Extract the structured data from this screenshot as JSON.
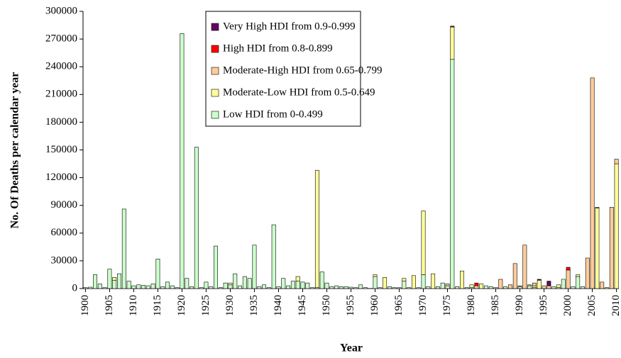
{
  "chart_data": {
    "type": "stacked-bar",
    "y_label": "No. Of Deaths per calendar year",
    "x_label": "Year",
    "x": [
      1900,
      1901,
      1902,
      1903,
      1904,
      1905,
      1906,
      1907,
      1908,
      1909,
      1910,
      1911,
      1912,
      1913,
      1914,
      1915,
      1916,
      1917,
      1918,
      1919,
      1920,
      1921,
      1922,
      1923,
      1924,
      1925,
      1926,
      1927,
      1928,
      1929,
      1930,
      1931,
      1932,
      1933,
      1934,
      1935,
      1936,
      1937,
      1938,
      1939,
      1940,
      1941,
      1942,
      1943,
      1944,
      1945,
      1946,
      1947,
      1948,
      1949,
      1950,
      1951,
      1952,
      1953,
      1954,
      1955,
      1956,
      1957,
      1958,
      1959,
      1960,
      1961,
      1962,
      1963,
      1964,
      1965,
      1966,
      1967,
      1968,
      1969,
      1970,
      1971,
      1972,
      1973,
      1974,
      1975,
      1976,
      1977,
      1978,
      1979,
      1980,
      1981,
      1982,
      1983,
      1984,
      1985,
      1986,
      1987,
      1988,
      1989,
      1990,
      1991,
      1992,
      1993,
      1994,
      1995,
      1996,
      1997,
      1998,
      1999,
      2000,
      2001,
      2002,
      2003,
      2004,
      2005,
      2006,
      2007,
      2008,
      2009,
      2010
    ],
    "xlim": [
      1899.5,
      2010.5
    ],
    "xticks": [
      1900,
      1905,
      1910,
      1915,
      1920,
      1925,
      1930,
      1935,
      1940,
      1945,
      1950,
      1955,
      1960,
      1965,
      1970,
      1975,
      1980,
      1985,
      1990,
      1995,
      2000,
      2005,
      2010
    ],
    "ylim": [
      0,
      300000
    ],
    "yticks": [
      0,
      30000,
      60000,
      90000,
      120000,
      150000,
      180000,
      210000,
      240000,
      270000,
      300000
    ],
    "series": [
      {
        "name": "Very High HDI from 0.9-0.999",
        "color": "#660066",
        "values": [
          0,
          0,
          0,
          0,
          0,
          0,
          0,
          0,
          0,
          0,
          0,
          0,
          0,
          0,
          0,
          0,
          0,
          0,
          0,
          0,
          0,
          0,
          0,
          0,
          0,
          0,
          0,
          0,
          0,
          0,
          0,
          0,
          0,
          0,
          0,
          0,
          0,
          0,
          0,
          0,
          0,
          0,
          0,
          0,
          0,
          0,
          0,
          0,
          0,
          0,
          0,
          0,
          0,
          0,
          0,
          0,
          0,
          0,
          0,
          0,
          0,
          0,
          0,
          0,
          0,
          0,
          0,
          0,
          0,
          0,
          0,
          0,
          0,
          0,
          0,
          0,
          1000,
          0,
          0,
          0,
          0,
          0,
          0,
          0,
          0,
          0,
          0,
          0,
          0,
          0,
          0,
          0,
          0,
          0,
          1000,
          0,
          5000,
          0,
          0,
          0,
          0,
          0,
          0,
          0,
          0,
          0,
          0,
          0,
          0,
          0,
          0
        ]
      },
      {
        "name": "High HDI from 0.8-0.899",
        "color": "#ff0000",
        "values": [
          0,
          0,
          0,
          0,
          0,
          0,
          0,
          0,
          0,
          0,
          0,
          0,
          0,
          0,
          0,
          0,
          0,
          0,
          0,
          0,
          0,
          0,
          0,
          0,
          0,
          0,
          0,
          0,
          0,
          0,
          0,
          0,
          0,
          0,
          0,
          0,
          0,
          0,
          0,
          0,
          0,
          0,
          0,
          0,
          0,
          0,
          0,
          0,
          0,
          0,
          0,
          0,
          0,
          0,
          0,
          0,
          0,
          0,
          0,
          0,
          0,
          0,
          0,
          0,
          0,
          0,
          0,
          0,
          0,
          0,
          0,
          0,
          0,
          0,
          0,
          0,
          0,
          0,
          0,
          0,
          0,
          3000,
          0,
          0,
          0,
          0,
          0,
          0,
          0,
          0,
          0,
          0,
          0,
          0,
          0,
          0,
          0,
          0,
          0,
          0,
          3000,
          0,
          0,
          0,
          0,
          0,
          0,
          0,
          0,
          0,
          0
        ]
      },
      {
        "name": "Moderate-High HDI from 0.65-0.799",
        "color": "#ffcc99",
        "values": [
          0,
          0,
          0,
          0,
          0,
          0,
          0,
          0,
          0,
          0,
          0,
          0,
          0,
          0,
          0,
          0,
          0,
          0,
          0,
          0,
          0,
          0,
          0,
          0,
          0,
          0,
          0,
          0,
          0,
          0,
          0,
          0,
          0,
          0,
          0,
          0,
          0,
          0,
          0,
          0,
          0,
          0,
          0,
          0,
          0,
          0,
          0,
          0,
          0,
          0,
          0,
          0,
          0,
          0,
          0,
          0,
          0,
          0,
          0,
          0,
          0,
          0,
          0,
          0,
          0,
          0,
          0,
          0,
          0,
          0,
          0,
          0,
          0,
          0,
          0,
          2000,
          0,
          0,
          0,
          0,
          0,
          3000,
          0,
          0,
          0,
          0,
          10000,
          0,
          4000,
          27000,
          1000,
          47000,
          1000,
          3000,
          0,
          3000,
          3000,
          0,
          0,
          0,
          20000,
          0,
          0,
          0,
          33000,
          228000,
          1000,
          7000,
          0,
          88000,
          5000
        ]
      },
      {
        "name": "Moderate-Low HDI from 0.5-0.649",
        "color": "#ffff99",
        "values": [
          0,
          0,
          0,
          0,
          0,
          0,
          3000,
          0,
          0,
          0,
          0,
          0,
          0,
          0,
          0,
          0,
          0,
          0,
          0,
          0,
          0,
          0,
          0,
          0,
          0,
          0,
          0,
          0,
          0,
          0,
          2000,
          0,
          0,
          0,
          0,
          0,
          0,
          0,
          0,
          0,
          0,
          0,
          0,
          0,
          5000,
          0,
          0,
          0,
          127000,
          0,
          0,
          0,
          0,
          0,
          0,
          0,
          0,
          0,
          0,
          0,
          2000,
          0,
          12000,
          0,
          0,
          0,
          3000,
          0,
          14000,
          0,
          69000,
          0,
          16000,
          0,
          0,
          0,
          35000,
          0,
          19000,
          0,
          3000,
          0,
          5000,
          0,
          0,
          0,
          0,
          0,
          0,
          0,
          0,
          0,
          0,
          2000,
          9000,
          0,
          0,
          0,
          3000,
          0,
          0,
          0,
          2000,
          0,
          0,
          0,
          87000,
          0,
          0,
          0,
          135000
        ]
      },
      {
        "name": "Low HDI from 0-0.499",
        "color": "#ccffcc",
        "values": [
          1000,
          1500,
          15000,
          5000,
          1000,
          21000,
          9000,
          16000,
          86000,
          8000,
          3000,
          4000,
          3500,
          3000,
          5000,
          32000,
          2000,
          7000,
          3000,
          1000,
          276000,
          11000,
          2000,
          153000,
          1000,
          7000,
          2000,
          46000,
          1000,
          6000,
          4000,
          16000,
          3000,
          13000,
          11000,
          47000,
          2000,
          4000,
          1000,
          69000,
          2000,
          11000,
          3000,
          8000,
          8000,
          7000,
          6000,
          1000,
          1000,
          18000,
          6000,
          2000,
          3000,
          2000,
          2000,
          1500,
          1000,
          4000,
          1000,
          0,
          13000,
          1000,
          0,
          2000,
          1000,
          1000,
          8000,
          1000,
          0,
          1000,
          15000,
          2000,
          0,
          2000,
          6000,
          3000,
          248000,
          2000,
          0,
          1000,
          1000,
          0,
          0,
          3000,
          2000,
          1000,
          0,
          2000,
          0,
          0,
          2000,
          0,
          3000,
          1000,
          0,
          0,
          0,
          2000,
          1000,
          10000,
          0,
          2000,
          13000,
          2000,
          0,
          0,
          0,
          0,
          1000,
          0,
          0
        ]
      }
    ]
  }
}
